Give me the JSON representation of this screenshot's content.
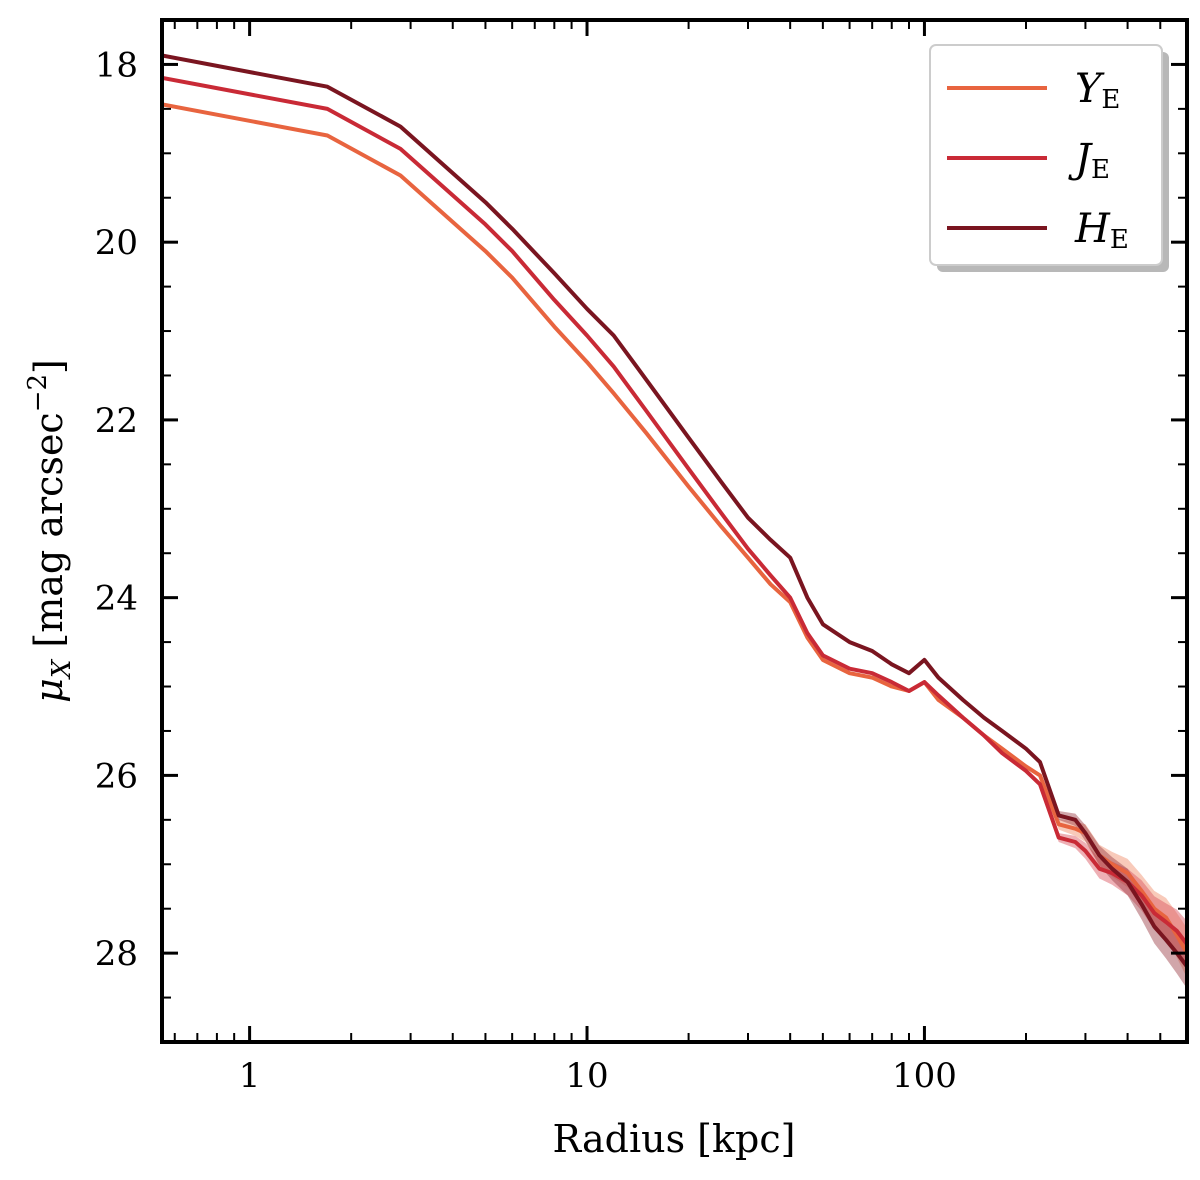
{
  "chart_data": {
    "type": "line",
    "xscale": "log",
    "xlim": [
      0.55,
      600
    ],
    "ylim": [
      29.0,
      17.5
    ],
    "y_inverted": true,
    "xlabel": "Radius [kpc]",
    "ylabel_main": "μ",
    "ylabel_sub": "X",
    "ylabel_units": " [mag arcsec",
    "ylabel_exp": "−2",
    "ylabel_close": "]",
    "x_ticks": [
      {
        "value": 1,
        "label": "1"
      },
      {
        "value": 10,
        "label": "10"
      },
      {
        "value": 100,
        "label": "100"
      }
    ],
    "y_ticks": [
      {
        "value": 18,
        "label": "18"
      },
      {
        "value": 20,
        "label": "20"
      },
      {
        "value": 22,
        "label": "22"
      },
      {
        "value": 24,
        "label": "24"
      },
      {
        "value": 26,
        "label": "26"
      },
      {
        "value": 28,
        "label": "28"
      }
    ],
    "legend_position": "top-right",
    "series": [
      {
        "name": "Y",
        "name_sub": "E",
        "color": "#e8643f",
        "band_color": "#f08a66",
        "x": [
          0.55,
          1.7,
          2.8,
          5,
          6,
          8,
          10,
          12,
          15,
          20,
          25,
          30,
          35,
          40,
          45,
          50,
          60,
          70,
          80,
          90,
          100,
          110,
          130,
          150,
          170,
          200,
          220,
          250,
          280,
          300,
          330,
          360,
          400,
          440,
          480,
          520,
          560,
          600
        ],
        "y": [
          18.45,
          18.8,
          19.25,
          20.1,
          20.4,
          20.95,
          21.35,
          21.7,
          22.15,
          22.75,
          23.2,
          23.55,
          23.85,
          24.05,
          24.45,
          24.7,
          24.85,
          24.9,
          25.0,
          25.05,
          24.95,
          25.15,
          25.35,
          25.55,
          25.7,
          25.9,
          26.0,
          26.55,
          26.6,
          26.65,
          26.9,
          27.0,
          27.1,
          27.3,
          27.5,
          27.6,
          27.8,
          28.0
        ],
        "band_half": [
          0,
          0,
          0,
          0,
          0,
          0,
          0,
          0,
          0,
          0,
          0,
          0,
          0,
          0,
          0,
          0,
          0,
          0,
          0,
          0,
          0,
          0,
          0,
          0,
          0,
          0,
          0.03,
          0.06,
          0.08,
          0.1,
          0.12,
          0.14,
          0.16,
          0.18,
          0.2,
          0.22,
          0.25,
          0.28
        ]
      },
      {
        "name": "J",
        "name_sub": "E",
        "color": "#c92a36",
        "band_color": "#d9505a",
        "x": [
          0.55,
          1.7,
          2.8,
          5,
          6,
          8,
          10,
          12,
          15,
          20,
          25,
          30,
          35,
          40,
          45,
          50,
          60,
          70,
          80,
          90,
          100,
          110,
          130,
          150,
          170,
          200,
          220,
          250,
          280,
          300,
          330,
          360,
          400,
          440,
          480,
          520,
          560,
          600
        ],
        "y": [
          18.15,
          18.5,
          18.95,
          19.8,
          20.1,
          20.65,
          21.05,
          21.4,
          21.9,
          22.55,
          23.05,
          23.45,
          23.75,
          24.0,
          24.4,
          24.65,
          24.8,
          24.85,
          24.95,
          25.05,
          24.95,
          25.1,
          25.35,
          25.55,
          25.75,
          25.95,
          26.1,
          26.7,
          26.75,
          26.85,
          27.05,
          27.1,
          27.2,
          27.35,
          27.55,
          27.65,
          27.75,
          27.9
        ],
        "band_half": [
          0,
          0,
          0,
          0,
          0,
          0,
          0,
          0,
          0,
          0,
          0,
          0,
          0,
          0,
          0,
          0,
          0,
          0,
          0,
          0,
          0,
          0,
          0,
          0,
          0,
          0,
          0.03,
          0.05,
          0.07,
          0.09,
          0.11,
          0.13,
          0.15,
          0.17,
          0.19,
          0.21,
          0.24,
          0.26
        ]
      },
      {
        "name": "H",
        "name_sub": "E",
        "color": "#7a1520",
        "band_color": "#9a3a42",
        "x": [
          0.55,
          1.7,
          2.8,
          5,
          6,
          8,
          10,
          12,
          15,
          20,
          25,
          30,
          35,
          40,
          45,
          50,
          60,
          70,
          80,
          90,
          100,
          110,
          130,
          150,
          170,
          200,
          220,
          250,
          280,
          300,
          330,
          360,
          400,
          440,
          480,
          520,
          560,
          600
        ],
        "y": [
          17.9,
          18.25,
          18.7,
          19.55,
          19.85,
          20.35,
          20.75,
          21.05,
          21.55,
          22.2,
          22.7,
          23.1,
          23.35,
          23.55,
          24.0,
          24.3,
          24.5,
          24.6,
          24.75,
          24.85,
          24.7,
          24.9,
          25.15,
          25.35,
          25.5,
          25.7,
          25.85,
          26.45,
          26.5,
          26.65,
          26.9,
          27.05,
          27.2,
          27.45,
          27.7,
          27.85,
          28.0,
          28.15
        ],
        "band_half": [
          0,
          0,
          0,
          0,
          0,
          0,
          0,
          0,
          0,
          0,
          0,
          0,
          0,
          0,
          0,
          0,
          0,
          0,
          0,
          0,
          0,
          0,
          0,
          0,
          0,
          0,
          0.03,
          0.05,
          0.07,
          0.09,
          0.11,
          0.13,
          0.15,
          0.17,
          0.19,
          0.21,
          0.23,
          0.25
        ]
      }
    ]
  }
}
